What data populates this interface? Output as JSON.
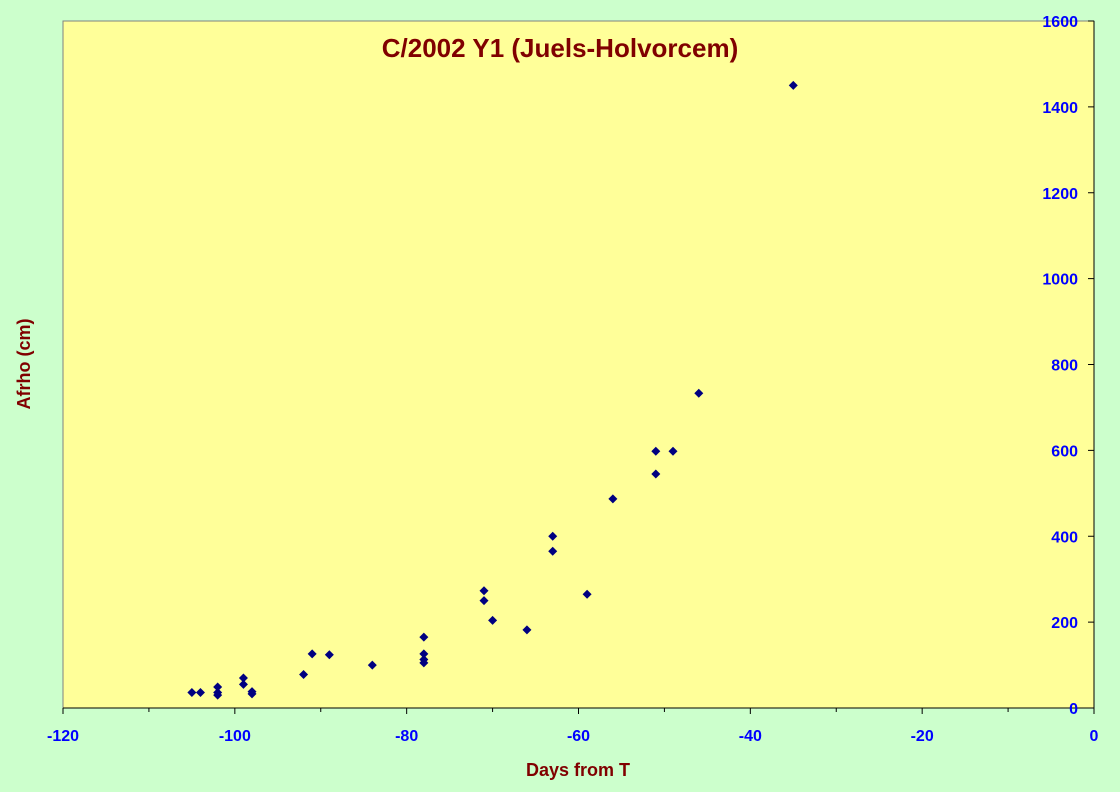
{
  "colors": {
    "background": "#ccffcc",
    "plot_area": "#ffff99",
    "title": "#800000",
    "axis_label": "#800000",
    "tick_label": "#0000ff",
    "marker": "#000080"
  },
  "chart_data": {
    "type": "scatter",
    "title": "C/2002 Y1 (Juels-Holvorcem)",
    "xlabel": "Days from T",
    "ylabel": "Afrho (cm)",
    "xlim": [
      -120,
      0
    ],
    "ylim": [
      0,
      1600
    ],
    "x_ticks": [
      -120,
      -100,
      -80,
      -60,
      -40,
      -20,
      0
    ],
    "y_ticks": [
      0,
      200,
      400,
      600,
      800,
      1000,
      1200,
      1400,
      1600
    ],
    "x_tick_labels": [
      "-120",
      "-100",
      "-80",
      "-60",
      "-40",
      "-20",
      "0"
    ],
    "y_tick_labels": [
      "0",
      "200",
      "400",
      "600",
      "800",
      "1000",
      "1200",
      "1400",
      "1600"
    ],
    "y_axis_side": "right",
    "grid": false,
    "legend": "none",
    "marker": "diamond",
    "series": [
      {
        "points": [
          [
            -105,
            36
          ],
          [
            -104,
            36
          ],
          [
            -102,
            30
          ],
          [
            -102,
            36
          ],
          [
            -102,
            49
          ],
          [
            -99,
            55
          ],
          [
            -99,
            70
          ],
          [
            -98,
            33
          ],
          [
            -98,
            38
          ],
          [
            -92,
            78
          ],
          [
            -91,
            126
          ],
          [
            -89,
            124
          ],
          [
            -84,
            100
          ],
          [
            -78,
            105
          ],
          [
            -78,
            113
          ],
          [
            -78,
            126
          ],
          [
            -78,
            165
          ],
          [
            -71,
            250
          ],
          [
            -71,
            273
          ],
          [
            -70,
            204
          ],
          [
            -66,
            182
          ],
          [
            -63,
            365
          ],
          [
            -63,
            400
          ],
          [
            -59,
            265
          ],
          [
            -56,
            487
          ],
          [
            -51,
            545
          ],
          [
            -51,
            598
          ],
          [
            -49,
            598
          ],
          [
            -46,
            733
          ],
          [
            -35,
            1450
          ]
        ]
      }
    ]
  }
}
